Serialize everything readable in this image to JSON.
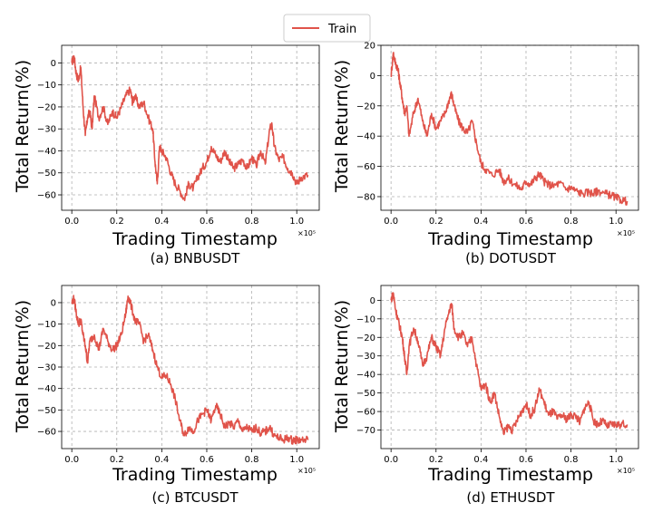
{
  "legend": {
    "label": "Train",
    "color": "#e0534a"
  },
  "chart_data": [
    {
      "type": "line",
      "id": "bnb",
      "caption": "(a) BNBUSDT",
      "xlabel": "Trading Timestamp",
      "ylabel": "Total Return(%)",
      "x_offset_text": "×10⁵",
      "xlim": [
        -0.045,
        1.1
      ],
      "ylim": [
        -67,
        8
      ],
      "xticks": [
        0.0,
        0.2,
        0.4,
        0.6,
        0.8,
        1.0
      ],
      "xtick_labels": [
        "0.0",
        "0.2",
        "0.4",
        "0.6",
        "0.8",
        "1.0"
      ],
      "yticks": [
        0,
        -10,
        -20,
        -30,
        -40,
        -50,
        -60
      ],
      "ytick_labels": [
        "0",
        "−10",
        "−20",
        "−30",
        "−40",
        "−50",
        "−60"
      ],
      "series": [
        {
          "name": "Train",
          "x": [
            0.0,
            0.01,
            0.02,
            0.03,
            0.04,
            0.05,
            0.06,
            0.07,
            0.08,
            0.09,
            0.1,
            0.12,
            0.14,
            0.16,
            0.18,
            0.2,
            0.22,
            0.24,
            0.26,
            0.27,
            0.28,
            0.3,
            0.32,
            0.34,
            0.36,
            0.37,
            0.38,
            0.39,
            0.4,
            0.42,
            0.44,
            0.46,
            0.48,
            0.5,
            0.52,
            0.54,
            0.56,
            0.58,
            0.6,
            0.62,
            0.64,
            0.66,
            0.68,
            0.7,
            0.72,
            0.74,
            0.76,
            0.78,
            0.8,
            0.82,
            0.84,
            0.86,
            0.88,
            0.89,
            0.9,
            0.92,
            0.94,
            0.96,
            0.98,
            1.0,
            1.02,
            1.05
          ],
          "y": [
            0,
            3,
            -5,
            -8,
            -2,
            -20,
            -33,
            -25,
            -22,
            -30,
            -15,
            -25,
            -20,
            -28,
            -22,
            -25,
            -20,
            -15,
            -12,
            -18,
            -15,
            -20,
            -18,
            -25,
            -30,
            -45,
            -55,
            -38,
            -40,
            -43,
            -50,
            -55,
            -58,
            -62,
            -55,
            -57,
            -52,
            -48,
            -45,
            -38,
            -42,
            -45,
            -40,
            -45,
            -48,
            -46,
            -44,
            -48,
            -43,
            -47,
            -40,
            -46,
            -30,
            -28,
            -38,
            -44,
            -43,
            -48,
            -50,
            -55,
            -52,
            -51
          ]
        }
      ]
    },
    {
      "type": "line",
      "id": "dot",
      "caption": "(b) DOTUSDT",
      "xlabel": "Trading Timestamp",
      "ylabel": "Total Return(%)",
      "x_offset_text": "×10⁵",
      "xlim": [
        -0.045,
        1.1
      ],
      "ylim": [
        -89,
        20
      ],
      "xticks": [
        0.0,
        0.2,
        0.4,
        0.6,
        0.8,
        1.0
      ],
      "xtick_labels": [
        "0.0",
        "0.2",
        "0.4",
        "0.6",
        "0.8",
        "1.0"
      ],
      "yticks": [
        20,
        0,
        -20,
        -40,
        -60,
        -80
      ],
      "ytick_labels": [
        "20",
        "0",
        "−20",
        "−40",
        "−60",
        "−80"
      ],
      "series": [
        {
          "name": "Train",
          "x": [
            0.0,
            0.01,
            0.02,
            0.03,
            0.04,
            0.05,
            0.06,
            0.07,
            0.08,
            0.1,
            0.12,
            0.14,
            0.16,
            0.18,
            0.2,
            0.22,
            0.24,
            0.26,
            0.27,
            0.28,
            0.3,
            0.32,
            0.34,
            0.36,
            0.38,
            0.4,
            0.42,
            0.45,
            0.48,
            0.5,
            0.52,
            0.55,
            0.58,
            0.6,
            0.62,
            0.64,
            0.66,
            0.68,
            0.7,
            0.72,
            0.75,
            0.78,
            0.8,
            0.82,
            0.85,
            0.88,
            0.9,
            0.92,
            0.95,
            0.98,
            1.0,
            1.02,
            1.05
          ],
          "y": [
            0,
            15,
            8,
            5,
            -5,
            -15,
            -25,
            -20,
            -40,
            -25,
            -15,
            -30,
            -40,
            -25,
            -35,
            -30,
            -25,
            -15,
            -12,
            -20,
            -30,
            -35,
            -38,
            -30,
            -45,
            -58,
            -62,
            -66,
            -62,
            -70,
            -68,
            -72,
            -75,
            -70,
            -72,
            -68,
            -65,
            -70,
            -72,
            -73,
            -71,
            -75,
            -74,
            -76,
            -78,
            -77,
            -78,
            -76,
            -78,
            -79,
            -81,
            -82,
            -83
          ]
        }
      ]
    },
    {
      "type": "line",
      "id": "btc",
      "caption": "(c) BTCUSDT",
      "xlabel": "Trading Timestamp",
      "ylabel": "Total Return(%)",
      "x_offset_text": "×10⁵",
      "xlim": [
        -0.045,
        1.1
      ],
      "ylim": [
        -68,
        8
      ],
      "xticks": [
        0.0,
        0.2,
        0.4,
        0.6,
        0.8,
        1.0
      ],
      "xtick_labels": [
        "0.0",
        "0.2",
        "0.4",
        "0.6",
        "0.8",
        "1.0"
      ],
      "yticks": [
        0,
        -10,
        -20,
        -30,
        -40,
        -50,
        -60
      ],
      "ytick_labels": [
        "0",
        "−10",
        "−20",
        "−30",
        "−40",
        "−50",
        "−60"
      ],
      "series": [
        {
          "name": "Train",
          "x": [
            0.0,
            0.01,
            0.02,
            0.03,
            0.04,
            0.05,
            0.06,
            0.07,
            0.08,
            0.1,
            0.12,
            0.14,
            0.16,
            0.18,
            0.2,
            0.22,
            0.24,
            0.25,
            0.26,
            0.28,
            0.3,
            0.32,
            0.34,
            0.36,
            0.38,
            0.4,
            0.42,
            0.44,
            0.46,
            0.48,
            0.5,
            0.52,
            0.54,
            0.56,
            0.58,
            0.6,
            0.62,
            0.64,
            0.66,
            0.68,
            0.7,
            0.72,
            0.74,
            0.76,
            0.78,
            0.8,
            0.82,
            0.84,
            0.86,
            0.88,
            0.9,
            0.92,
            0.94,
            0.96,
            0.98,
            1.0,
            1.02,
            1.05
          ],
          "y": [
            0,
            2,
            -5,
            -10,
            -8,
            -15,
            -20,
            -28,
            -18,
            -15,
            -22,
            -12,
            -18,
            -22,
            -20,
            -15,
            -5,
            3,
            0,
            -8,
            -10,
            -18,
            -15,
            -22,
            -30,
            -35,
            -34,
            -38,
            -45,
            -55,
            -62,
            -58,
            -60,
            -55,
            -52,
            -50,
            -55,
            -48,
            -52,
            -58,
            -56,
            -58,
            -55,
            -60,
            -58,
            -60,
            -58,
            -61,
            -60,
            -58,
            -62,
            -63,
            -64,
            -63,
            -64,
            -64,
            -64,
            -64
          ]
        }
      ]
    },
    {
      "type": "line",
      "id": "eth",
      "caption": "(d) ETHUSDT",
      "xlabel": "Trading Timestamp",
      "ylabel": "Total Return(%)",
      "x_offset_text": "×10⁵",
      "xlim": [
        -0.045,
        1.1
      ],
      "ylim": [
        -80,
        8
      ],
      "xticks": [
        0.0,
        0.2,
        0.4,
        0.6,
        0.8,
        1.0
      ],
      "xtick_labels": [
        "0.0",
        "0.2",
        "0.4",
        "0.6",
        "0.8",
        "1.0"
      ],
      "yticks": [
        0,
        -10,
        -20,
        -30,
        -40,
        -50,
        -60,
        -70
      ],
      "ytick_labels": [
        "0",
        "−10",
        "−20",
        "−30",
        "−40",
        "−50",
        "−60",
        "−70"
      ],
      "series": [
        {
          "name": "Train",
          "x": [
            0.0,
            0.01,
            0.02,
            0.03,
            0.04,
            0.05,
            0.06,
            0.07,
            0.08,
            0.1,
            0.12,
            0.14,
            0.16,
            0.18,
            0.2,
            0.22,
            0.24,
            0.26,
            0.27,
            0.28,
            0.3,
            0.32,
            0.34,
            0.36,
            0.38,
            0.4,
            0.42,
            0.44,
            0.46,
            0.48,
            0.5,
            0.52,
            0.54,
            0.56,
            0.58,
            0.6,
            0.62,
            0.64,
            0.66,
            0.68,
            0.7,
            0.72,
            0.74,
            0.76,
            0.78,
            0.8,
            0.82,
            0.84,
            0.86,
            0.88,
            0.9,
            0.92,
            0.94,
            0.96,
            0.98,
            1.0,
            1.02,
            1.05
          ],
          "y": [
            0,
            4,
            -5,
            -10,
            -15,
            -20,
            -30,
            -40,
            -25,
            -15,
            -22,
            -35,
            -30,
            -20,
            -25,
            -30,
            -15,
            -5,
            -2,
            -15,
            -20,
            -18,
            -25,
            -20,
            -35,
            -48,
            -45,
            -55,
            -50,
            -62,
            -72,
            -68,
            -70,
            -65,
            -60,
            -56,
            -62,
            -58,
            -48,
            -55,
            -62,
            -60,
            -64,
            -62,
            -64,
            -62,
            -62,
            -66,
            -58,
            -55,
            -65,
            -67,
            -65,
            -68,
            -67,
            -67,
            -67,
            -67
          ]
        }
      ]
    }
  ]
}
